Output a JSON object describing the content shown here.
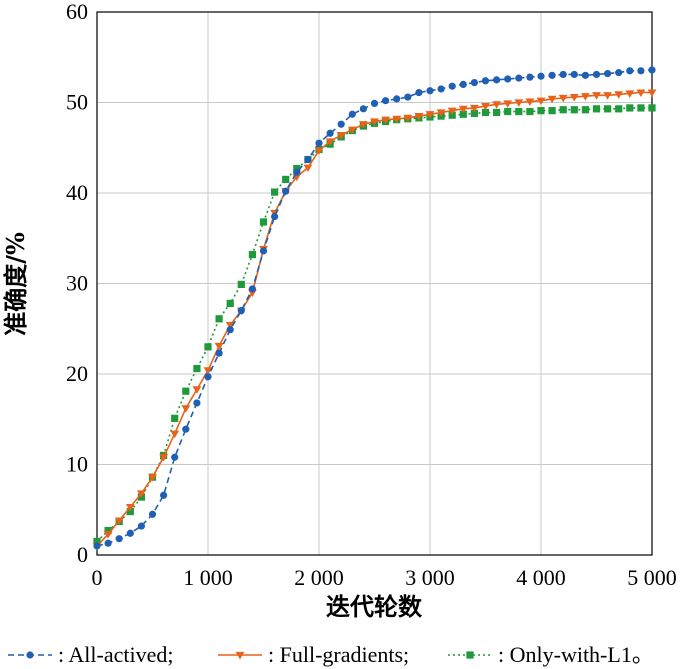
{
  "chart_data": {
    "type": "line",
    "xlabel": "迭代轮数",
    "ylabel": "准确度/%",
    "xlim": [
      0,
      5000
    ],
    "ylim": [
      0,
      60
    ],
    "xticks": [
      0,
      1000,
      2000,
      3000,
      4000,
      5000
    ],
    "xtick_labels": [
      "0",
      "1 000",
      "2 000",
      "3 000",
      "4 000",
      "5 000"
    ],
    "yticks": [
      0,
      10,
      20,
      30,
      40,
      50,
      60
    ],
    "ytick_labels": [
      "0",
      "10",
      "20",
      "30",
      "40",
      "50",
      "60"
    ],
    "grid": true,
    "legend_position": "bottom",
    "series": [
      {
        "name": "All-actived;",
        "legend_label": ": All-actived;",
        "color": "#1f5fb4",
        "marker": "circle",
        "line_style": "dashed",
        "x": [
          0,
          100,
          200,
          300,
          400,
          500,
          600,
          700,
          800,
          900,
          1000,
          1100,
          1200,
          1300,
          1400,
          1500,
          1600,
          1700,
          1800,
          1900,
          2000,
          2100,
          2200,
          2300,
          2400,
          2500,
          2600,
          2700,
          2800,
          2900,
          3000,
          3100,
          3200,
          3300,
          3400,
          3500,
          3600,
          3700,
          3800,
          3900,
          4000,
          4100,
          4200,
          4300,
          4400,
          4500,
          4600,
          4700,
          4800,
          4900,
          5000
        ],
        "y": [
          1.0,
          1.3,
          1.8,
          2.4,
          3.2,
          4.5,
          6.6,
          10.8,
          13.9,
          16.8,
          19.7,
          22.3,
          24.9,
          27.0,
          29.4,
          33.6,
          37.4,
          40.2,
          42.3,
          43.7,
          45.5,
          46.6,
          47.6,
          48.7,
          49.3,
          49.9,
          50.2,
          50.4,
          50.6,
          51.1,
          51.3,
          51.5,
          51.8,
          52.0,
          52.2,
          52.4,
          52.5,
          52.6,
          52.7,
          52.8,
          52.9,
          53.0,
          53.1,
          53.1,
          53.0,
          53.1,
          53.2,
          53.3,
          53.5,
          53.5,
          53.6
        ]
      },
      {
        "name": "Full-gradients;",
        "legend_label": ": Full-gradients;",
        "color": "#e8621a",
        "marker": "triangle-down",
        "line_style": "solid",
        "x": [
          0,
          100,
          200,
          300,
          400,
          500,
          600,
          700,
          800,
          900,
          1000,
          1100,
          1200,
          1300,
          1400,
          1500,
          1600,
          1700,
          1800,
          1900,
          2000,
          2100,
          2200,
          2300,
          2400,
          2500,
          2600,
          2700,
          2800,
          2900,
          3000,
          3100,
          3200,
          3300,
          3400,
          3500,
          3600,
          3700,
          3800,
          3900,
          4000,
          4100,
          4200,
          4300,
          4400,
          4500,
          4600,
          4700,
          4800,
          4900,
          5000
        ],
        "y": [
          1.0,
          2.3,
          3.8,
          5.3,
          6.8,
          8.6,
          10.8,
          13.4,
          16.2,
          18.3,
          20.4,
          23.1,
          25.4,
          27.0,
          29.0,
          33.8,
          37.8,
          40.2,
          41.8,
          42.8,
          44.7,
          45.7,
          46.4,
          47.0,
          47.6,
          47.9,
          48.1,
          48.2,
          48.3,
          48.5,
          48.7,
          48.9,
          49.1,
          49.3,
          49.4,
          49.6,
          49.8,
          49.9,
          50.0,
          50.1,
          50.2,
          50.4,
          50.5,
          50.6,
          50.7,
          50.8,
          50.8,
          50.9,
          51.0,
          51.1,
          51.1
        ]
      },
      {
        "name": "Only-with-L1。",
        "legend_label": ": Only-with-L1。",
        "color": "#1e9a3a",
        "marker": "square",
        "line_style": "dotted",
        "x": [
          0,
          100,
          200,
          300,
          400,
          500,
          600,
          700,
          800,
          900,
          1000,
          1100,
          1200,
          1300,
          1400,
          1500,
          1600,
          1700,
          1800,
          1900,
          2000,
          2100,
          2200,
          2300,
          2400,
          2500,
          2600,
          2700,
          2800,
          2900,
          3000,
          3100,
          3200,
          3300,
          3400,
          3500,
          3600,
          3700,
          3800,
          3900,
          4000,
          4100,
          4200,
          4300,
          4400,
          4500,
          4600,
          4700,
          4800,
          4900,
          5000
        ],
        "y": [
          1.5,
          2.7,
          3.7,
          4.8,
          6.4,
          8.6,
          11.0,
          15.1,
          18.1,
          20.6,
          23.0,
          26.1,
          27.8,
          29.9,
          33.2,
          36.8,
          40.1,
          41.5,
          42.7,
          43.7,
          44.8,
          45.4,
          46.2,
          46.9,
          47.4,
          47.7,
          47.9,
          48.1,
          48.2,
          48.3,
          48.4,
          48.5,
          48.6,
          48.7,
          48.8,
          48.9,
          48.9,
          49.0,
          49.0,
          49.0,
          49.1,
          49.1,
          49.2,
          49.2,
          49.2,
          49.3,
          49.3,
          49.3,
          49.4,
          49.4,
          49.4
        ]
      }
    ]
  }
}
